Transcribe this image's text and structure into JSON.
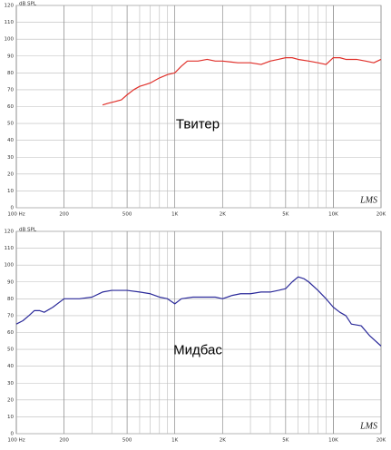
{
  "chart_data": [
    {
      "type": "line",
      "y_label": "dB SPL",
      "annotation": "Твитер",
      "watermark": "LMS",
      "log_x": true,
      "grid": true,
      "xlim": [
        100,
        20000
      ],
      "ylim": [
        0,
        120
      ],
      "xticks": [
        {
          "value": 100,
          "label": "100 Hz"
        },
        200,
        500,
        {
          "value": 1000,
          "label": "1K"
        },
        {
          "value": 2000,
          "label": "2K"
        },
        {
          "value": 5000,
          "label": "5K"
        },
        {
          "value": 10000,
          "label": "10K"
        },
        {
          "value": 20000,
          "label": "20K"
        }
      ],
      "yticks": [
        0,
        10,
        20,
        30,
        40,
        50,
        60,
        70,
        80,
        90,
        100,
        110,
        120
      ],
      "x": [
        350,
        380,
        420,
        460,
        500,
        550,
        600,
        650,
        700,
        800,
        900,
        1000,
        1100,
        1200,
        1400,
        1600,
        1800,
        2000,
        2500,
        3000,
        3500,
        4000,
        4500,
        5000,
        5500,
        6000,
        7000,
        8000,
        9000,
        10000,
        11000,
        12000,
        14000,
        16000,
        18000,
        20000
      ],
      "series": [
        {
          "color": "#e0302a",
          "values": [
            61,
            62,
            63,
            64,
            67,
            70,
            72,
            73,
            74,
            77,
            79,
            80,
            84,
            87,
            87,
            88,
            87,
            87,
            86,
            86,
            85,
            87,
            88,
            89,
            89,
            88,
            87,
            86,
            85,
            89,
            89,
            88,
            88,
            87,
            86,
            88
          ]
        }
      ]
    },
    {
      "type": "line",
      "y_label": "dB SPL",
      "annotation": "Мидбас",
      "watermark": "LMS",
      "log_x": true,
      "grid": true,
      "xlim": [
        100,
        20000
      ],
      "ylim": [
        0,
        120
      ],
      "xticks": [
        {
          "value": 100,
          "label": "100 Hz"
        },
        200,
        500,
        {
          "value": 1000,
          "label": "1K"
        },
        {
          "value": 2000,
          "label": "2K"
        },
        {
          "value": 5000,
          "label": "5K"
        },
        {
          "value": 10000,
          "label": "10K"
        },
        {
          "value": 20000,
          "label": "20K"
        }
      ],
      "yticks": [
        0,
        10,
        20,
        30,
        40,
        50,
        60,
        70,
        80,
        90,
        100,
        110,
        120
      ],
      "x": [
        100,
        110,
        120,
        130,
        140,
        150,
        170,
        200,
        250,
        300,
        350,
        400,
        500,
        600,
        700,
        800,
        900,
        1000,
        1100,
        1300,
        1500,
        1800,
        2000,
        2300,
        2600,
        3000,
        3500,
        4000,
        4500,
        5000,
        5500,
        6000,
        6500,
        7000,
        8000,
        9000,
        10000,
        11000,
        12000,
        13000,
        15000,
        17000,
        20000
      ],
      "series": [
        {
          "color": "#2b2a9a",
          "values": [
            65,
            67,
            70,
            73,
            73,
            72,
            75,
            80,
            80,
            81,
            84,
            85,
            85,
            84,
            83,
            81,
            80,
            77,
            80,
            81,
            81,
            81,
            80,
            82,
            83,
            83,
            84,
            84,
            85,
            86,
            90,
            93,
            92,
            90,
            85,
            80,
            75,
            72,
            70,
            65,
            64,
            58,
            52
          ]
        }
      ]
    }
  ]
}
